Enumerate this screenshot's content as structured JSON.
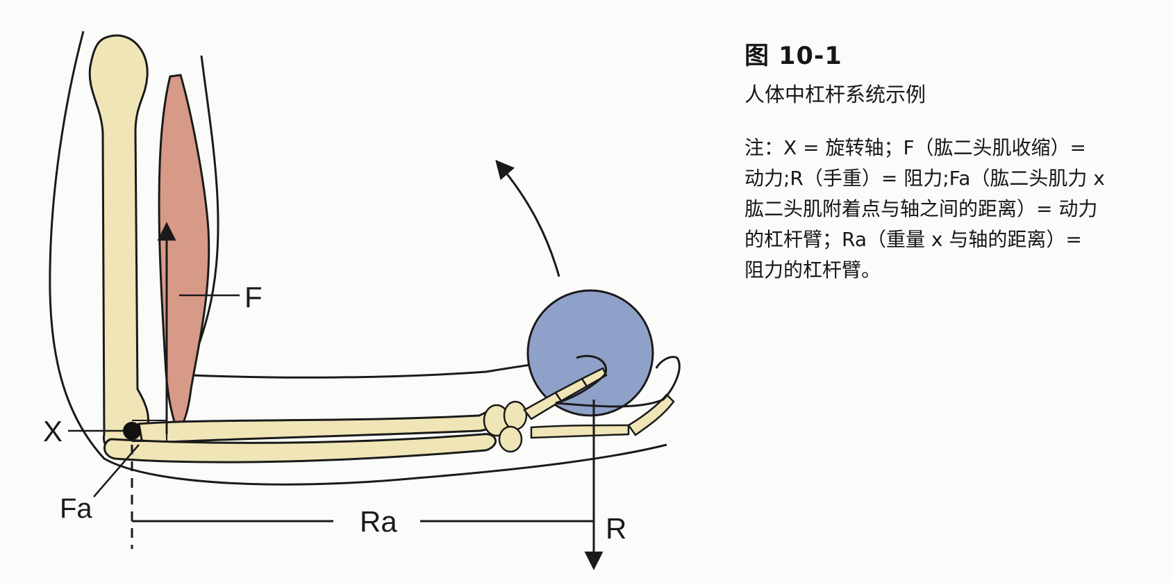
{
  "caption": {
    "title": "图 10-1",
    "subtitle": "人体中杠杆系统示例",
    "note": "注：X = 旋转轴；F（肱二头肌收缩）= 动力;R（手重）= 阻力;Fa（肱二头肌力 x 肱二头肌附着点与轴之间的距离）= 动力的杠杆臂；Ra（重量 x 与轴的距离）= 阻力的杠杆臂。"
  },
  "labels": {
    "axis": "X",
    "force": "F",
    "force_arm": "Fa",
    "resistance_arm": "Ra",
    "resistance": "R"
  },
  "colors": {
    "bone": "#f0e5b6",
    "muscle": "#d79a86",
    "ball": "#8fa1c9",
    "outline": "#1a1a1a"
  }
}
